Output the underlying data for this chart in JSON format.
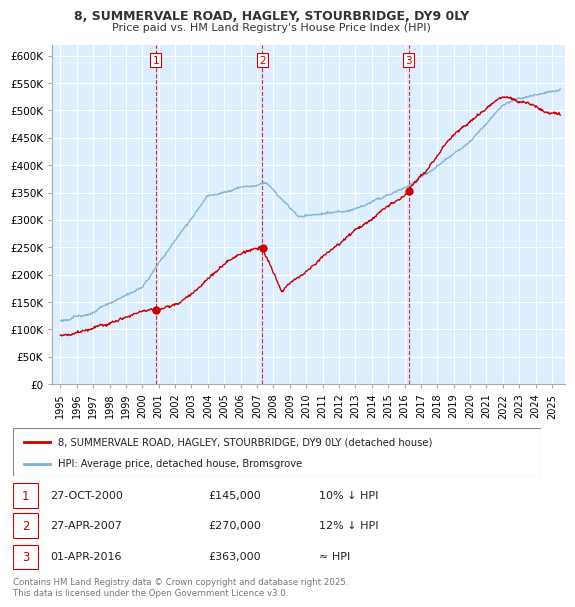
{
  "title": "8, SUMMERVALE ROAD, HAGLEY, STOURBRIDGE, DY9 0LY",
  "subtitle": "Price paid vs. HM Land Registry's House Price Index (HPI)",
  "property_label": "8, SUMMERVALE ROAD, HAGLEY, STOURBRIDGE, DY9 0LY (detached house)",
  "hpi_label": "HPI: Average price, detached house, Bromsgrove",
  "property_color": "#cc0000",
  "hpi_color": "#7bafd4",
  "vline_color": "#cc0000",
  "background_color": "#ddeeff",
  "grid_color": "#ffffff",
  "ylim": [
    0,
    620000
  ],
  "yticks": [
    0,
    50000,
    100000,
    150000,
    200000,
    250000,
    300000,
    350000,
    400000,
    450000,
    500000,
    550000,
    600000
  ],
  "ytick_labels": [
    "£0",
    "£50K",
    "£100K",
    "£150K",
    "£200K",
    "£250K",
    "£300K",
    "£350K",
    "£400K",
    "£450K",
    "£500K",
    "£550K",
    "£600K"
  ],
  "transactions": [
    {
      "date_num": 2000.82,
      "price": 145000,
      "label": "1"
    },
    {
      "date_num": 2007.32,
      "price": 270000,
      "label": "2"
    },
    {
      "date_num": 2016.25,
      "price": 363000,
      "label": "3"
    }
  ],
  "transaction_table": [
    {
      "num": "1",
      "date": "27-OCT-2000",
      "price": "£145,000",
      "hpi_note": "10% ↓ HPI"
    },
    {
      "num": "2",
      "date": "27-APR-2007",
      "price": "£270,000",
      "hpi_note": "12% ↓ HPI"
    },
    {
      "num": "3",
      "date": "01-APR-2016",
      "price": "£363,000",
      "hpi_note": "≈ HPI"
    }
  ],
  "footnote": "Contains HM Land Registry data © Crown copyright and database right 2025.\nThis data is licensed under the Open Government Licence v3.0.",
  "xmin": 1994.5,
  "xmax": 2025.8
}
